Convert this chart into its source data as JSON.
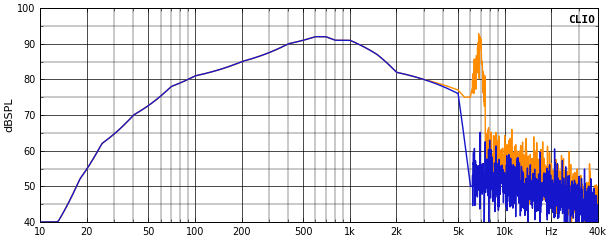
{
  "title": "CLIO",
  "ylabel": "dBSPL",
  "x_min": 10,
  "x_max": 40000,
  "y_min": 40,
  "y_max": 100,
  "y_ticks": [
    40,
    50,
    60,
    70,
    80,
    90,
    100
  ],
  "x_ticks_major": [
    10,
    20,
    50,
    100,
    200,
    500,
    1000,
    2000,
    5000,
    10000,
    20000,
    40000
  ],
  "x_tick_labels": [
    "10",
    "20",
    "50",
    "100",
    "200",
    "500",
    "1k",
    "2k",
    "5k",
    "10k",
    "Hz",
    "40k"
  ],
  "color_blue": "#1515cc",
  "color_orange": "#ff8c00",
  "bg_color": "#ffffff",
  "grid_color": "#000000",
  "line_width": 1.0
}
